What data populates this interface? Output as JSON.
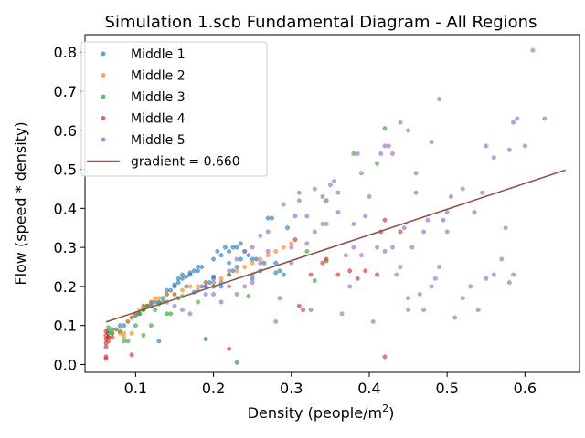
{
  "chart_data": {
    "type": "scatter",
    "title": "Simulation 1.scb Fundamental Diagram - All Regions",
    "xlabel": "Density (people/m",
    "xlabel_sup": "2",
    "xlabel_end": ")",
    "ylabel": "Flow (speed * density)",
    "xlim": [
      0.035,
      0.67
    ],
    "ylim": [
      -0.02,
      0.845
    ],
    "x_ticks": [
      0.1,
      0.2,
      0.3,
      0.4,
      0.5,
      0.6
    ],
    "x_tick_labels": [
      "0.1",
      "0.2",
      "0.3",
      "0.4",
      "0.5",
      "0.6"
    ],
    "y_ticks": [
      0.0,
      0.1,
      0.2,
      0.3,
      0.4,
      0.5,
      0.6,
      0.7,
      0.8
    ],
    "y_tick_labels": [
      "0.0",
      "0.1",
      "0.2",
      "0.3",
      "0.4",
      "0.5",
      "0.6",
      "0.7",
      "0.8"
    ],
    "grid": false,
    "legend_placement": "top-left",
    "series": [
      {
        "name": "Middle 1",
        "color": "#1f77b4",
        "points": [
          [
            0.065,
            0.08
          ],
          [
            0.07,
            0.09
          ],
          [
            0.075,
            0.09
          ],
          [
            0.08,
            0.1
          ],
          [
            0.085,
            0.1
          ],
          [
            0.09,
            0.11
          ],
          [
            0.095,
            0.12
          ],
          [
            0.1,
            0.125
          ],
          [
            0.1,
            0.13
          ],
          [
            0.105,
            0.13
          ],
          [
            0.11,
            0.14
          ],
          [
            0.11,
            0.15
          ],
          [
            0.115,
            0.15
          ],
          [
            0.12,
            0.155
          ],
          [
            0.12,
            0.16
          ],
          [
            0.125,
            0.16
          ],
          [
            0.13,
            0.16
          ],
          [
            0.135,
            0.17
          ],
          [
            0.14,
            0.18
          ],
          [
            0.14,
            0.19
          ],
          [
            0.145,
            0.19
          ],
          [
            0.15,
            0.2
          ],
          [
            0.15,
            0.205
          ],
          [
            0.155,
            0.21
          ],
          [
            0.155,
            0.22
          ],
          [
            0.16,
            0.22
          ],
          [
            0.16,
            0.23
          ],
          [
            0.165,
            0.225
          ],
          [
            0.17,
            0.23
          ],
          [
            0.17,
            0.235
          ],
          [
            0.175,
            0.24
          ],
          [
            0.18,
            0.24
          ],
          [
            0.18,
            0.25
          ],
          [
            0.185,
            0.25
          ],
          [
            0.19,
            0.2
          ],
          [
            0.19,
            0.21
          ],
          [
            0.195,
            0.21
          ],
          [
            0.2,
            0.22
          ],
          [
            0.2,
            0.225
          ],
          [
            0.205,
            0.29
          ],
          [
            0.21,
            0.28
          ],
          [
            0.215,
            0.3
          ],
          [
            0.22,
            0.29
          ],
          [
            0.225,
            0.3
          ],
          [
            0.23,
            0.3
          ],
          [
            0.235,
            0.31
          ],
          [
            0.24,
            0.29
          ],
          [
            0.245,
            0.28
          ],
          [
            0.25,
            0.27
          ],
          [
            0.255,
            0.27
          ],
          [
            0.26,
            0.24
          ],
          [
            0.265,
            0.26
          ],
          [
            0.27,
            0.375
          ],
          [
            0.275,
            0.375
          ],
          [
            0.28,
            0.26
          ],
          [
            0.285,
            0.24
          ],
          [
            0.29,
            0.23
          ],
          [
            0.295,
            0.35
          ],
          [
            0.13,
            0.06
          ],
          [
            0.19,
            0.065
          ],
          [
            0.23,
            0.005
          ],
          [
            0.21,
            0.2
          ],
          [
            0.23,
            0.25
          ],
          [
            0.25,
            0.22
          ],
          [
            0.15,
            0.18
          ],
          [
            0.165,
            0.2
          ],
          [
            0.175,
            0.185
          ],
          [
            0.185,
            0.2
          ],
          [
            0.225,
            0.24
          ],
          [
            0.235,
            0.27
          ],
          [
            0.28,
            0.235
          ],
          [
            0.2,
            0.27
          ],
          [
            0.22,
            0.26
          ]
        ]
      },
      {
        "name": "Middle 2",
        "color": "#ff7f0e",
        "points": [
          [
            0.065,
            0.07
          ],
          [
            0.07,
            0.08
          ],
          [
            0.075,
            0.09
          ],
          [
            0.08,
            0.08
          ],
          [
            0.085,
            0.08
          ],
          [
            0.09,
            0.11
          ],
          [
            0.095,
            0.12
          ],
          [
            0.1,
            0.13
          ],
          [
            0.105,
            0.14
          ],
          [
            0.11,
            0.15
          ],
          [
            0.115,
            0.15
          ],
          [
            0.12,
            0.16
          ],
          [
            0.125,
            0.17
          ],
          [
            0.13,
            0.17
          ],
          [
            0.14,
            0.18
          ],
          [
            0.15,
            0.18
          ],
          [
            0.16,
            0.19
          ],
          [
            0.17,
            0.2
          ],
          [
            0.18,
            0.2
          ],
          [
            0.19,
            0.21
          ],
          [
            0.2,
            0.2
          ],
          [
            0.21,
            0.22
          ],
          [
            0.22,
            0.23
          ],
          [
            0.23,
            0.24
          ],
          [
            0.24,
            0.25
          ],
          [
            0.25,
            0.26
          ],
          [
            0.26,
            0.27
          ],
          [
            0.27,
            0.28
          ],
          [
            0.28,
            0.29
          ],
          [
            0.29,
            0.3
          ],
          [
            0.3,
            0.31
          ],
          [
            0.085,
            0.07
          ],
          [
            0.095,
            0.08
          ]
        ]
      },
      {
        "name": "Middle 3",
        "color": "#2ca02c",
        "points": [
          [
            0.065,
            0.07
          ],
          [
            0.065,
            0.085
          ],
          [
            0.065,
            0.095
          ],
          [
            0.07,
            0.08
          ],
          [
            0.08,
            0.085
          ],
          [
            0.085,
            0.06
          ],
          [
            0.09,
            0.06
          ],
          [
            0.1,
            0.1
          ],
          [
            0.105,
            0.13
          ],
          [
            0.11,
            0.075
          ],
          [
            0.11,
            0.14
          ],
          [
            0.115,
            0.15
          ],
          [
            0.12,
            0.1
          ],
          [
            0.125,
            0.14
          ],
          [
            0.13,
            0.155
          ],
          [
            0.135,
            0.16
          ],
          [
            0.14,
            0.13
          ],
          [
            0.145,
            0.13
          ],
          [
            0.18,
            0.16
          ],
          [
            0.2,
            0.2
          ],
          [
            0.22,
            0.23
          ],
          [
            0.245,
            0.175
          ],
          [
            0.32,
            0.29
          ],
          [
            0.33,
            0.215
          ],
          [
            0.345,
            0.42
          ],
          [
            0.345,
            0.265
          ],
          [
            0.38,
            0.54
          ],
          [
            0.41,
            0.515
          ],
          [
            0.42,
            0.605
          ],
          [
            0.155,
            0.17
          ],
          [
            0.16,
            0.175
          ]
        ]
      },
      {
        "name": "Middle 4",
        "color": "#d62728",
        "points": [
          [
            0.062,
            0.045
          ],
          [
            0.062,
            0.055
          ],
          [
            0.062,
            0.065
          ],
          [
            0.062,
            0.075
          ],
          [
            0.062,
            0.085
          ],
          [
            0.062,
            0.015
          ],
          [
            0.062,
            0.02
          ],
          [
            0.065,
            0.06
          ],
          [
            0.065,
            0.07
          ],
          [
            0.07,
            0.07
          ],
          [
            0.095,
            0.025
          ],
          [
            0.22,
            0.04
          ],
          [
            0.305,
            0.32
          ],
          [
            0.31,
            0.15
          ],
          [
            0.315,
            0.14
          ],
          [
            0.325,
            0.23
          ],
          [
            0.34,
            0.26
          ],
          [
            0.36,
            0.23
          ],
          [
            0.375,
            0.24
          ],
          [
            0.385,
            0.22
          ],
          [
            0.395,
            0.24
          ],
          [
            0.41,
            0.23
          ],
          [
            0.415,
            0.34
          ],
          [
            0.42,
            0.02
          ],
          [
            0.42,
            0.37
          ],
          [
            0.44,
            0.34
          ],
          [
            0.345,
            0.27
          ]
        ]
      },
      {
        "name": "Middle 5",
        "color": "#9467bd",
        "points": [
          [
            0.12,
            0.15
          ],
          [
            0.14,
            0.16
          ],
          [
            0.15,
            0.15
          ],
          [
            0.16,
            0.14
          ],
          [
            0.17,
            0.13
          ],
          [
            0.18,
            0.19
          ],
          [
            0.19,
            0.2
          ],
          [
            0.2,
            0.21
          ],
          [
            0.21,
            0.21
          ],
          [
            0.22,
            0.2
          ],
          [
            0.23,
            0.18
          ],
          [
            0.24,
            0.2
          ],
          [
            0.25,
            0.3
          ],
          [
            0.26,
            0.33
          ],
          [
            0.27,
            0.34
          ],
          [
            0.28,
            0.11
          ],
          [
            0.285,
            0.17
          ],
          [
            0.29,
            0.41
          ],
          [
            0.3,
            0.3
          ],
          [
            0.305,
            0.38
          ],
          [
            0.31,
            0.42
          ],
          [
            0.31,
            0.44
          ],
          [
            0.32,
            0.38
          ],
          [
            0.325,
            0.14
          ],
          [
            0.33,
            0.45
          ],
          [
            0.34,
            0.43
          ],
          [
            0.345,
            0.36
          ],
          [
            0.35,
            0.46
          ],
          [
            0.355,
            0.47
          ],
          [
            0.36,
            0.39
          ],
          [
            0.365,
            0.13
          ],
          [
            0.37,
            0.28
          ],
          [
            0.375,
            0.2
          ],
          [
            0.38,
            0.3
          ],
          [
            0.385,
            0.54
          ],
          [
            0.39,
            0.28
          ],
          [
            0.39,
            0.49
          ],
          [
            0.395,
            0.38
          ],
          [
            0.4,
            0.43
          ],
          [
            0.405,
            0.11
          ],
          [
            0.41,
            0.3
          ],
          [
            0.415,
            0.54
          ],
          [
            0.42,
            0.56
          ],
          [
            0.425,
            0.56
          ],
          [
            0.43,
            0.3
          ],
          [
            0.435,
            0.23
          ],
          [
            0.44,
            0.25
          ],
          [
            0.445,
            0.35
          ],
          [
            0.45,
            0.17
          ],
          [
            0.455,
            0.3
          ],
          [
            0.46,
            0.44
          ],
          [
            0.465,
            0.18
          ],
          [
            0.47,
            0.34
          ],
          [
            0.475,
            0.37
          ],
          [
            0.48,
            0.2
          ],
          [
            0.485,
            0.22
          ],
          [
            0.49,
            0.25
          ],
          [
            0.495,
            0.37
          ],
          [
            0.5,
            0.34
          ],
          [
            0.505,
            0.43
          ],
          [
            0.51,
            0.12
          ],
          [
            0.52,
            0.45
          ],
          [
            0.53,
            0.2
          ],
          [
            0.535,
            0.39
          ],
          [
            0.54,
            0.14
          ],
          [
            0.545,
            0.44
          ],
          [
            0.55,
            0.22
          ],
          [
            0.56,
            0.23
          ],
          [
            0.57,
            0.27
          ],
          [
            0.575,
            0.35
          ],
          [
            0.58,
            0.55
          ],
          [
            0.585,
            0.62
          ],
          [
            0.59,
            0.63
          ],
          [
            0.6,
            0.56
          ],
          [
            0.61,
            0.805
          ],
          [
            0.625,
            0.63
          ],
          [
            0.44,
            0.62
          ],
          [
            0.45,
            0.6
          ],
          [
            0.46,
            0.49
          ],
          [
            0.49,
            0.68
          ],
          [
            0.43,
            0.54
          ],
          [
            0.48,
            0.57
          ],
          [
            0.5,
            0.39
          ],
          [
            0.52,
            0.17
          ],
          [
            0.55,
            0.56
          ],
          [
            0.56,
            0.53
          ],
          [
            0.58,
            0.21
          ],
          [
            0.585,
            0.23
          ],
          [
            0.45,
            0.14
          ],
          [
            0.47,
            0.14
          ],
          [
            0.42,
            0.29
          ],
          [
            0.38,
            0.36
          ],
          [
            0.36,
            0.44
          ],
          [
            0.34,
            0.36
          ],
          [
            0.33,
            0.34
          ],
          [
            0.26,
            0.26
          ],
          [
            0.27,
            0.29
          ],
          [
            0.25,
            0.21
          ],
          [
            0.24,
            0.29
          ],
          [
            0.23,
            0.27
          ],
          [
            0.22,
            0.24
          ],
          [
            0.21,
            0.16
          ],
          [
            0.2,
            0.18
          ],
          [
            0.19,
            0.18
          ],
          [
            0.3,
            0.26
          ],
          [
            0.32,
            0.31
          ],
          [
            0.25,
            0.23
          ]
        ]
      }
    ],
    "fit_line": {
      "name": "gradient = 0.660",
      "color": "#8c564b",
      "x": [
        0.062,
        0.652
      ],
      "y": [
        0.109,
        0.498
      ]
    },
    "legend": [
      {
        "label": "Middle 1",
        "color": "#1f77b4",
        "kind": "marker"
      },
      {
        "label": "Middle 2",
        "color": "#ff7f0e",
        "kind": "marker"
      },
      {
        "label": "Middle 3",
        "color": "#2ca02c",
        "kind": "marker"
      },
      {
        "label": "Middle 4",
        "color": "#d62728",
        "kind": "marker"
      },
      {
        "label": "Middle 5",
        "color": "#9467bd",
        "kind": "marker"
      },
      {
        "label": "gradient = 0.660",
        "color": "#8c564b",
        "kind": "line"
      }
    ]
  }
}
